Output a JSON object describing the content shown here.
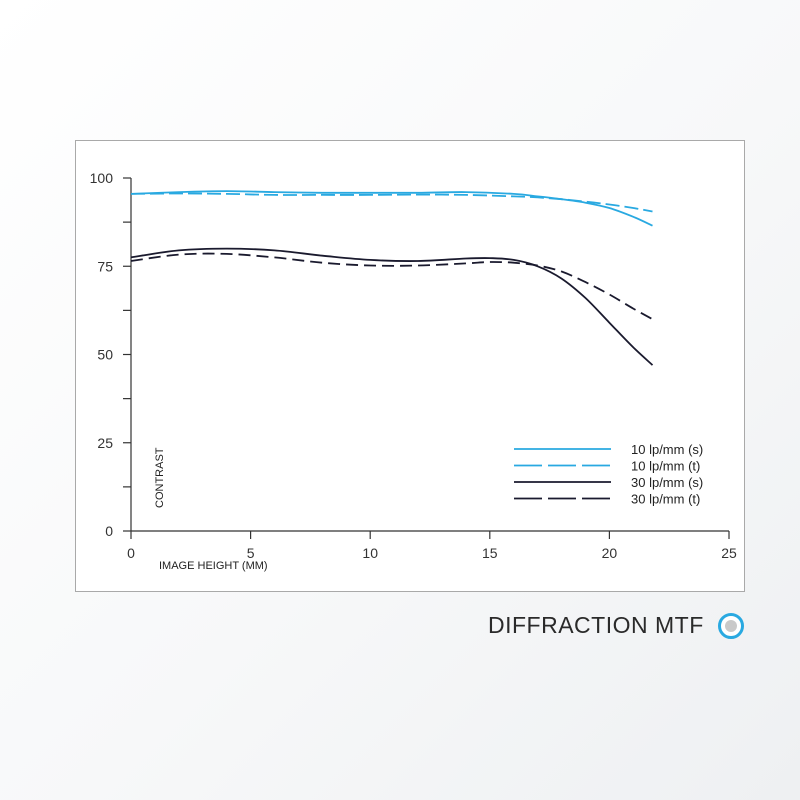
{
  "chart_data": {
    "type": "line",
    "xlabel": "IMAGE HEIGHT (MM)",
    "ylabel": "CONTRAST",
    "xlim": [
      0,
      25
    ],
    "ylim": [
      0,
      100
    ],
    "x_ticks": [
      "0",
      "5",
      "10",
      "15",
      "20",
      "25"
    ],
    "y_ticks": [
      "0",
      "25",
      "50",
      "75",
      "100"
    ],
    "grid": false,
    "legend_position": "bottom-right",
    "series": [
      {
        "name": "10 lp/mm (s)",
        "color": "#29a9e1",
        "dash": "solid",
        "x": [
          0,
          2,
          4,
          6,
          8,
          10,
          12,
          14,
          16,
          17,
          18,
          19,
          20,
          21,
          21.8
        ],
        "y": [
          95.5,
          96,
          96.3,
          96,
          95.8,
          95.8,
          95.8,
          96,
          95.5,
          94.8,
          94,
          93,
          91.5,
          89,
          86.5
        ]
      },
      {
        "name": "10 lp/mm (t)",
        "color": "#29a9e1",
        "dash": "dashed",
        "x": [
          0,
          2,
          4,
          6,
          8,
          10,
          12,
          14,
          16,
          17,
          18,
          19,
          20,
          21,
          21.8
        ],
        "y": [
          95.5,
          95.6,
          95.5,
          95.2,
          95.2,
          95.2,
          95.3,
          95.2,
          94.8,
          94.5,
          94,
          93.3,
          92.5,
          91.5,
          90.5
        ]
      },
      {
        "name": "30 lp/mm (s)",
        "color": "#1a1a2e",
        "dash": "solid",
        "x": [
          0,
          2,
          4,
          6,
          8,
          10,
          12,
          14,
          15,
          16,
          17,
          18,
          19,
          20,
          21,
          21.8
        ],
        "y": [
          77.5,
          79.5,
          80,
          79.5,
          78,
          76.8,
          76.5,
          77.2,
          77.3,
          76.8,
          75,
          71.5,
          66,
          59,
          52,
          47
        ]
      },
      {
        "name": "30 lp/mm (t)",
        "color": "#1a1a2e",
        "dash": "dashed",
        "x": [
          0,
          2,
          4,
          6,
          8,
          10,
          12,
          14,
          15,
          16,
          17,
          18,
          19,
          20,
          21,
          21.8
        ],
        "y": [
          76.5,
          78.3,
          78.5,
          77.5,
          76,
          75.2,
          75.2,
          75.8,
          76.2,
          76,
          75.2,
          73.5,
          70.5,
          67,
          63,
          60
        ]
      }
    ]
  },
  "caption": {
    "text": "DIFFRACTION MTF",
    "icon": "circle-dot-icon",
    "accent_color": "#29a9e1"
  }
}
